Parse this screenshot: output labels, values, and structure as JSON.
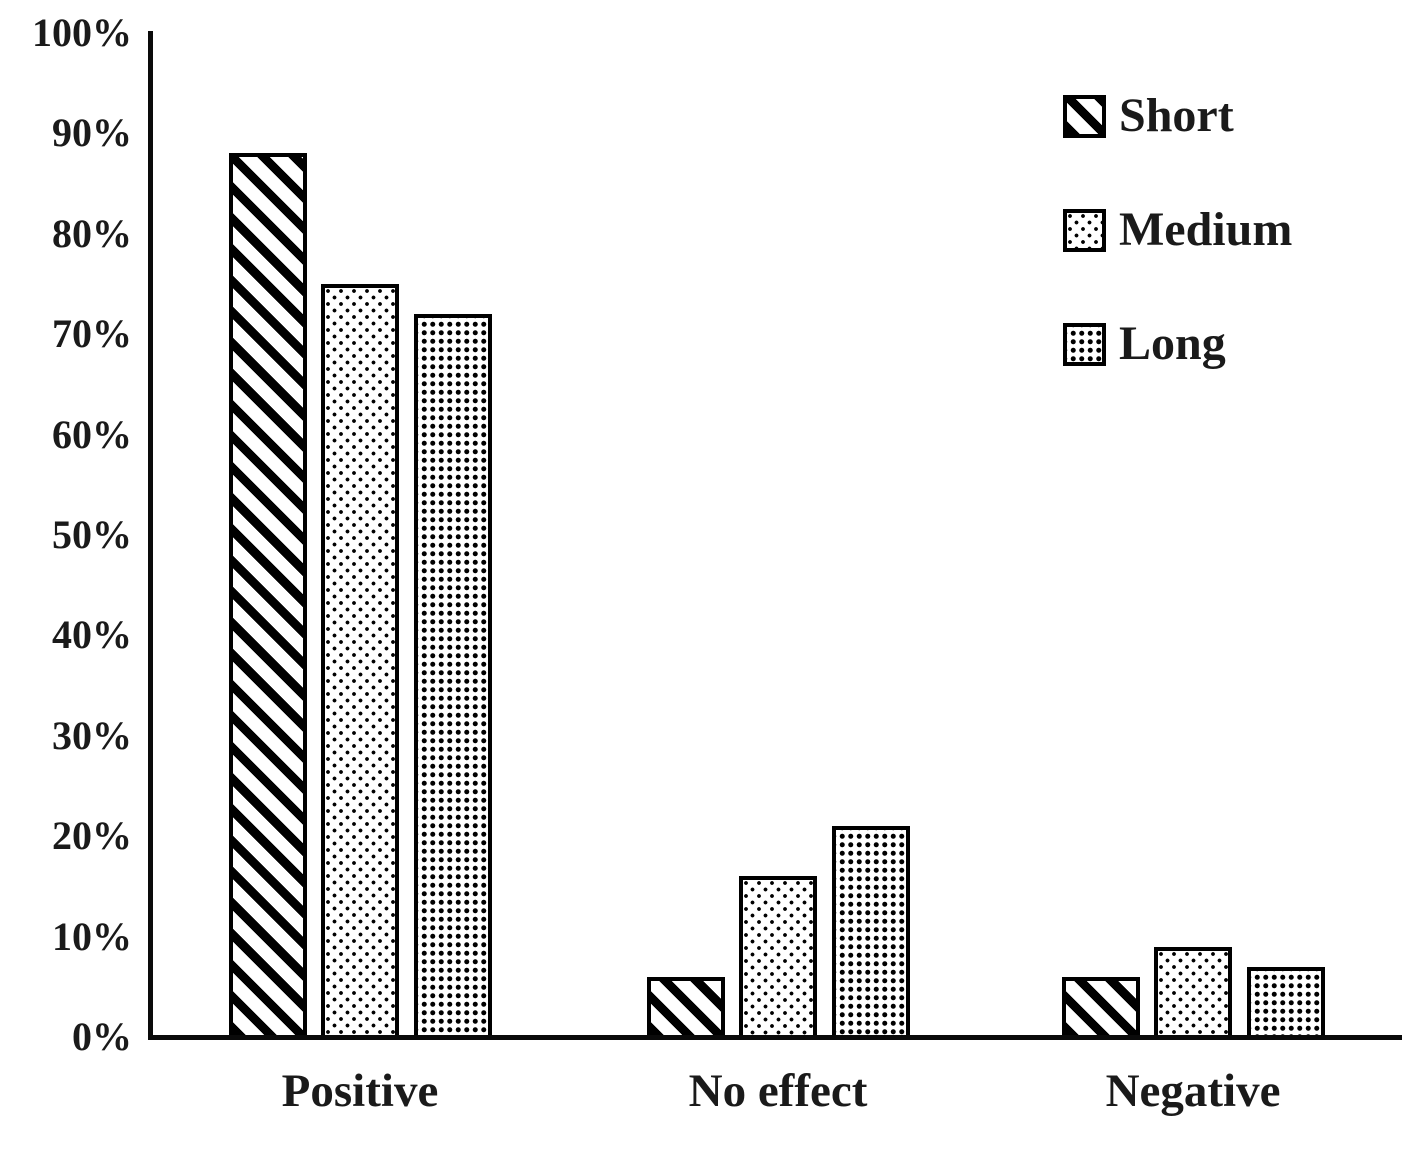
{
  "chart_data": {
    "type": "bar",
    "title": "",
    "categories": [
      "Positive",
      "No effect",
      "Negative"
    ],
    "series": [
      {
        "name": "Short",
        "pattern": "diagonal-stripes",
        "values": [
          88,
          6,
          6
        ]
      },
      {
        "name": "Medium",
        "pattern": "sparse-dots",
        "values": [
          75,
          16,
          9
        ]
      },
      {
        "name": "Long",
        "pattern": "dense-dots",
        "values": [
          72,
          21,
          7
        ]
      }
    ],
    "ylim": [
      0,
      100
    ],
    "ytick_labels": [
      "0%",
      "10%",
      "20%",
      "30%",
      "40%",
      "50%",
      "60%",
      "70%",
      "80%",
      "90%",
      "100%"
    ],
    "grid": false,
    "legend_position": "top-right",
    "colors": {
      "bar_ink": "#000000",
      "text": "#1a1a1a",
      "background": "#ffffff"
    }
  }
}
